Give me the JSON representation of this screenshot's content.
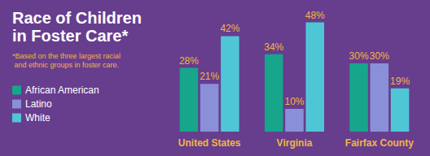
{
  "chart_data": {
    "type": "bar",
    "title": "Race of Children in Foster Care*",
    "subtitle": "*Based on the three largest racial and ethnic groups in foster care.",
    "categories": [
      "United States",
      "Virginia",
      "Fairfax County"
    ],
    "series": [
      {
        "name": "African American",
        "color": "#17a58c",
        "values": [
          28,
          34,
          30
        ],
        "value_labels": [
          "28%",
          "34%",
          "30%"
        ]
      },
      {
        "name": "Latino",
        "color": "#8a90d8",
        "values": [
          21,
          10,
          30
        ],
        "value_labels": [
          "21%",
          "10%",
          "30%"
        ]
      },
      {
        "name": "White",
        "color": "#4fc6d6",
        "values": [
          42,
          48,
          19
        ],
        "value_labels": [
          "42%",
          "48%",
          "19%"
        ]
      }
    ],
    "ylim": [
      0,
      50
    ],
    "grid": false,
    "legend": "left",
    "data_labels": true,
    "tick_labels": "x"
  }
}
